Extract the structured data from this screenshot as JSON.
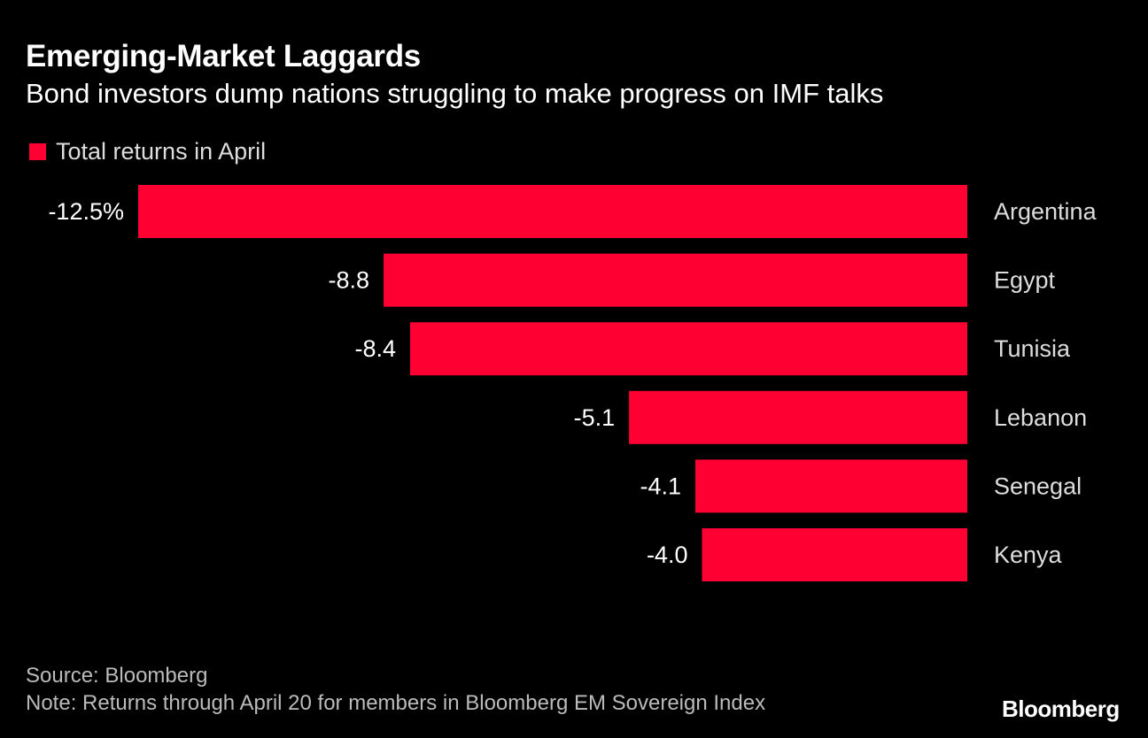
{
  "title": "Emerging-Market Laggards",
  "subtitle": "Bond investors dump nations struggling to make progress on IMF talks",
  "source": "Source: Bloomberg",
  "note": "Note: Returns through April 20 for members in Bloomberg EM Sovereign Index",
  "logo": "Bloomberg",
  "colors": {
    "bar": "#ff0033",
    "background": "#000000"
  },
  "chart_data": {
    "type": "bar",
    "orientation": "horizontal",
    "title": "Emerging-Market Laggards",
    "subtitle": "Bond investors dump nations struggling to make progress on IMF talks",
    "legend": [
      "Total returns in April"
    ],
    "legend_placement": "top-left",
    "categories": [
      "Argentina",
      "Egypt",
      "Tunisia",
      "Lebanon",
      "Senegal",
      "Kenya"
    ],
    "values": [
      -12.5,
      -8.8,
      -8.4,
      -5.1,
      -4.1,
      -4.0
    ],
    "data_labels": [
      "-12.5%",
      "-8.8",
      "-8.4",
      "-5.1",
      "-4.1",
      "-4.0"
    ],
    "xlim": [
      -12.5,
      0
    ],
    "grid": false,
    "xlabel": "",
    "ylabel": ""
  }
}
